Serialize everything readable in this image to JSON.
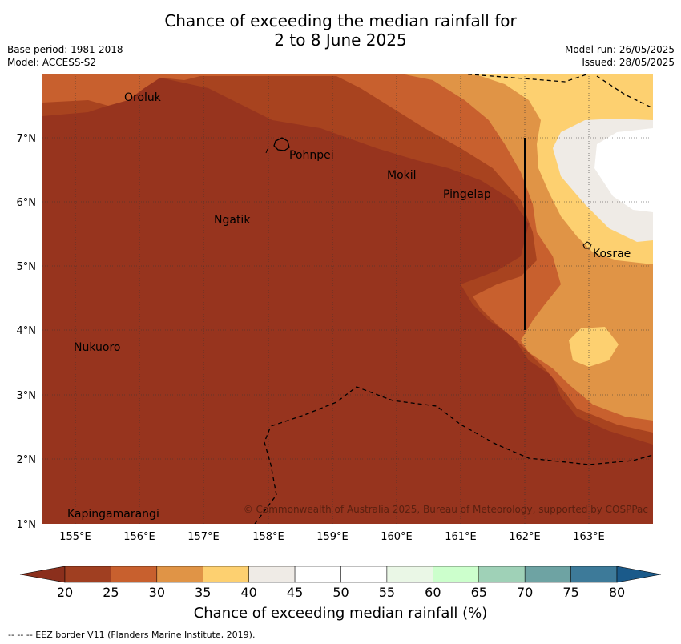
{
  "header": {
    "title_line1": "Chance of exceeding the median rainfall for",
    "title_line2": "2 to 8 June 2025",
    "base_period": "Base period: 1981-2018",
    "model": "Model: ACCESS-S2",
    "model_run": "Model run: 26/05/2025",
    "issued": "Issued: 28/05/2025"
  },
  "map": {
    "lon_ticks": [
      "155°E",
      "156°E",
      "157°E",
      "158°E",
      "159°E",
      "160°E",
      "161°E",
      "162°E",
      "163°E"
    ],
    "lat_ticks": [
      "1°N",
      "2°N",
      "3°N",
      "4°N",
      "5°N",
      "6°N",
      "7°N"
    ],
    "places": [
      {
        "name": "Oroluk"
      },
      {
        "name": "Pohnpei"
      },
      {
        "name": "Mokil"
      },
      {
        "name": "Pingelap"
      },
      {
        "name": "Ngatik"
      },
      {
        "name": "Kosrae"
      },
      {
        "name": "Nukuoro"
      },
      {
        "name": "Kapingamarangi"
      }
    ],
    "copyright": "© Commonwealth of Australia 2025, Bureau of Meteorology, supported by COSPPac"
  },
  "colorbar": {
    "title": "Chance of exceeding median rainfall (%)",
    "labels": [
      "20",
      "25",
      "30",
      "35",
      "40",
      "45",
      "50",
      "55",
      "60",
      "65",
      "70",
      "75",
      "80"
    ],
    "colors": [
      "#a03f21",
      "#c8602e",
      "#e09446",
      "#fdd070",
      "#efebe6",
      "#ffffff",
      "#ffffff",
      "#eaf7e6",
      "#ccffcc",
      "#9fd1b7",
      "#6ea3a3",
      "#3d7a99"
    ],
    "under_color": "#8b2f1c",
    "over_color": "#1a5a8a"
  },
  "footer": "--  --  -- EEZ border V11 (Flanders Marine Institute, 2019)."
}
